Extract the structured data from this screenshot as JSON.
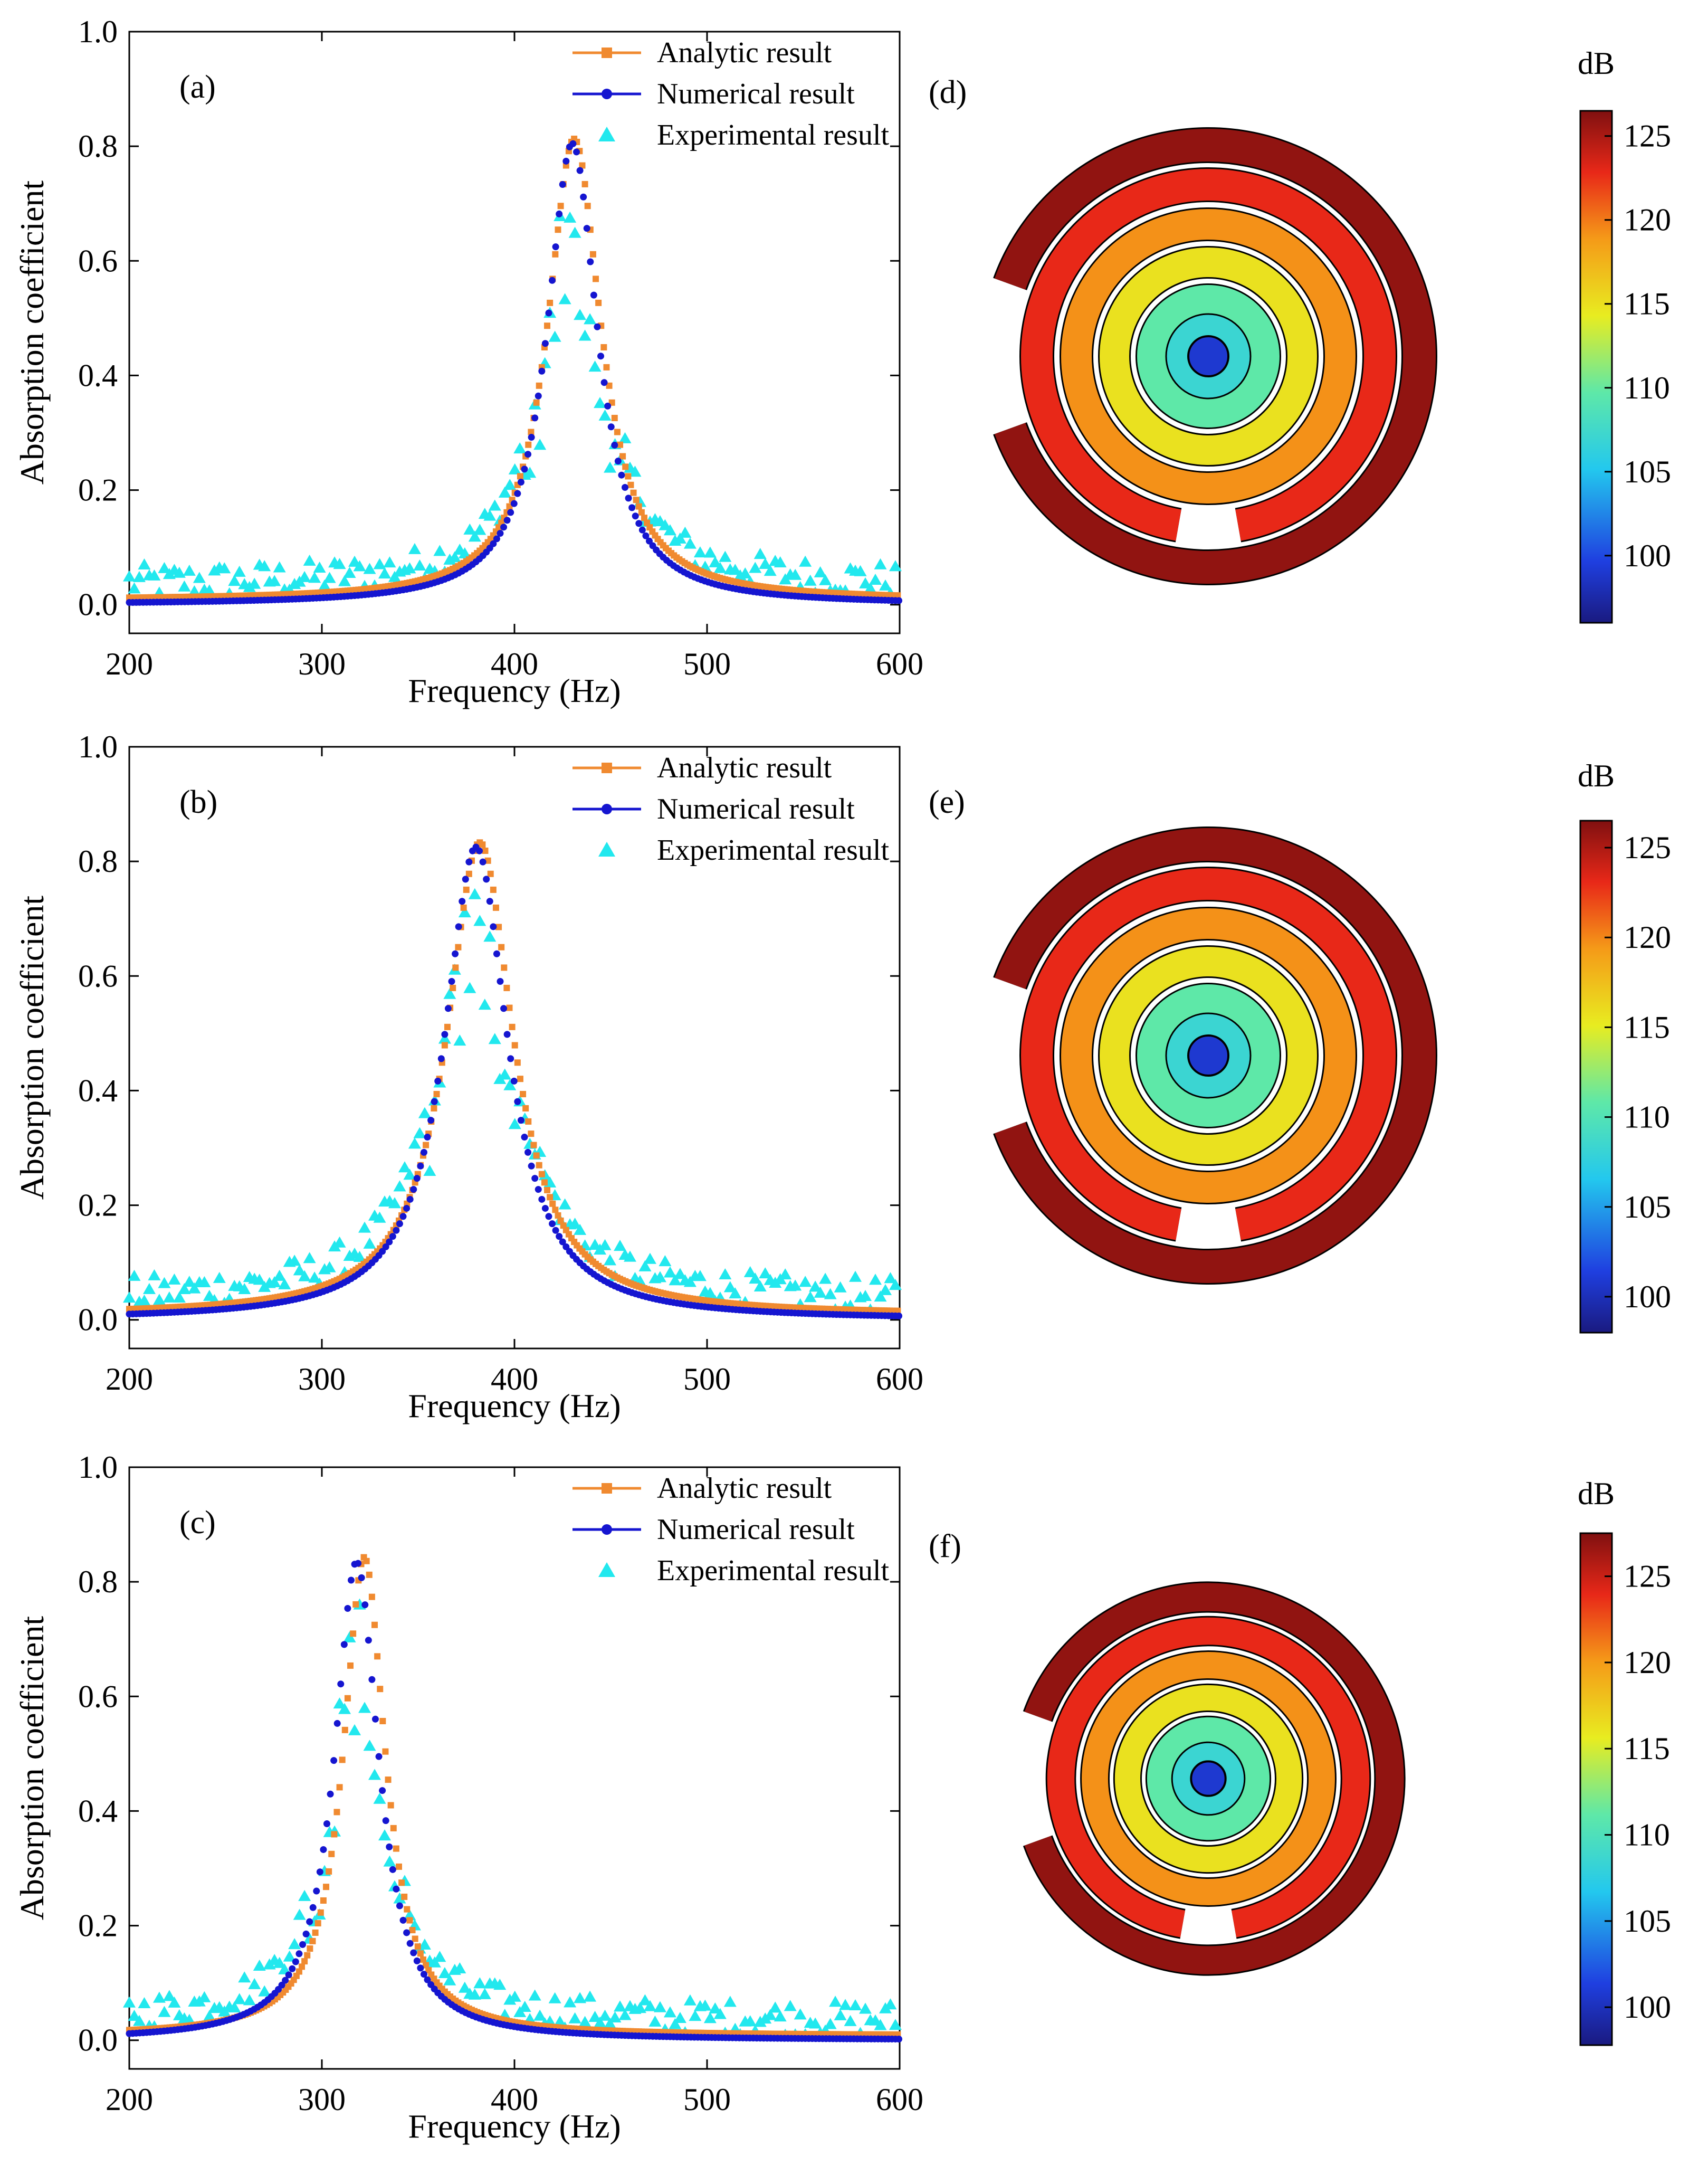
{
  "chart_data": [
    {
      "type": "line",
      "panel": "(a)",
      "title": "",
      "xlabel": "Frequency (Hz)",
      "ylabel": "Absorption coefficient",
      "xlim": [
        200,
        600
      ],
      "ylim": [
        -0.05,
        1.0
      ],
      "xticks": [
        200,
        300,
        400,
        500,
        600
      ],
      "yticks": [
        "0.0",
        "0.2",
        "0.4",
        "0.6",
        "0.8",
        "1.0"
      ],
      "legend": "top-right",
      "peak": {
        "f0": 430,
        "amp": 0.805,
        "width": 16
      },
      "series": [
        {
          "name": "Analytic result",
          "color": "#f08a30",
          "marker": "square",
          "shift": 1,
          "wscale": 1.06
        },
        {
          "name": "Numerical result",
          "color": "#1515d0",
          "marker": "circle",
          "shift": 0,
          "wscale": 1.0
        },
        {
          "name": "Experimental result",
          "color": "#22e8ee",
          "marker": "triangle",
          "noisy": true
        }
      ]
    },
    {
      "type": "line",
      "panel": "(b)",
      "title": "",
      "xlabel": "Frequency (Hz)",
      "ylabel": "Absorption coefficient",
      "xlim": [
        200,
        600
      ],
      "ylim": [
        -0.05,
        1.0
      ],
      "xticks": [
        200,
        300,
        400,
        500,
        600
      ],
      "yticks": [
        "0.0",
        "0.2",
        "0.4",
        "0.6",
        "0.8",
        "1.0"
      ],
      "legend": "top-right",
      "peak": {
        "f0": 380,
        "amp": 0.825,
        "width": 20
      },
      "series": [
        {
          "name": "Analytic result",
          "color": "#f08a30",
          "marker": "square",
          "shift": 2,
          "wscale": 1.05
        },
        {
          "name": "Numerical result",
          "color": "#1515d0",
          "marker": "circle",
          "shift": 0,
          "wscale": 1.0
        },
        {
          "name": "Experimental result",
          "color": "#22e8ee",
          "marker": "triangle",
          "noisy": true
        }
      ]
    },
    {
      "type": "line",
      "panel": "(c)",
      "title": "",
      "xlabel": "Frequency (Hz)",
      "ylabel": "Absorption coefficient",
      "xlim": [
        200,
        600
      ],
      "ylim": [
        -0.05,
        1.0
      ],
      "xticks": [
        200,
        300,
        400,
        500,
        600
      ],
      "yticks": [
        "0.0",
        "0.2",
        "0.4",
        "0.6",
        "0.8",
        "1.0"
      ],
      "legend": "top-right",
      "peak": {
        "f0": 318,
        "amp": 0.835,
        "width": 14
      },
      "series": [
        {
          "name": "Analytic result",
          "color": "#f08a30",
          "marker": "square",
          "shift": 4,
          "wscale": 0.95
        },
        {
          "name": "Numerical result",
          "color": "#1515d0",
          "marker": "circle",
          "shift": 0,
          "wscale": 1.0
        },
        {
          "name": "Experimental result",
          "color": "#22e8ee",
          "marker": "triangle",
          "noisy": true
        }
      ]
    },
    {
      "type": "heatmap",
      "panel": "(d)",
      "colorbar_label": "dB",
      "colorbar_ticks": [
        "100",
        "105",
        "110",
        "115",
        "120",
        "125"
      ],
      "range": [
        96,
        126.5
      ]
    },
    {
      "type": "heatmap",
      "panel": "(e)",
      "colorbar_label": "dB",
      "colorbar_ticks": [
        "100",
        "105",
        "110",
        "115",
        "120",
        "125"
      ],
      "range": [
        98,
        126.5
      ]
    },
    {
      "type": "heatmap",
      "panel": "(f)",
      "colorbar_label": "dB",
      "colorbar_ticks": [
        "100",
        "105",
        "110",
        "115",
        "120",
        "125"
      ],
      "range": [
        97.8,
        127.5
      ]
    }
  ]
}
